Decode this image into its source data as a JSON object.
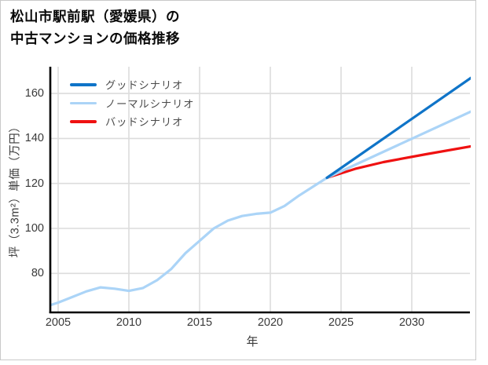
{
  "card": {
    "background": "#ffffff",
    "border_color": "#c9c9c9"
  },
  "title": {
    "line1": "松山市駅前駅（愛媛県）の",
    "line2": "中古マンションの価格推移"
  },
  "legend": {
    "position": "top-left-inside",
    "items": [
      {
        "label": "グッドシナリオ",
        "color": "#0f74c8"
      },
      {
        "label": "ノーマルシナリオ",
        "color": "#abd4f7"
      },
      {
        "label": "バッドシナリオ",
        "color": "#ef1111"
      }
    ]
  },
  "axes": {
    "x_title": "年",
    "y_title": "坪（3.3m²）単価（万円）",
    "grid_color": "#dcdcdc",
    "spine_color": "#000000",
    "tick_color": "#3a3a3a"
  },
  "chart_data": {
    "type": "line",
    "title": "松山市駅前駅（愛媛県）の中古マンションの価格推移",
    "xlabel": "年",
    "ylabel": "坪（3.3m²）単価（万円）",
    "x_ticks": [
      2005,
      2010,
      2015,
      2020,
      2025,
      2030
    ],
    "y_ticks": [
      80,
      100,
      120,
      140,
      160
    ],
    "xlim": [
      2004.4,
      2034.3
    ],
    "ylim": [
      62,
      172
    ],
    "grid": true,
    "legend_position": "top-left",
    "series": [
      {
        "name": "グッドシナリオ",
        "color": "#0f74c8",
        "width": 3.2,
        "points": [
          [
            2024,
            122.5
          ],
          [
            2034.2,
            167
          ]
        ]
      },
      {
        "name": "ノーマルシナリオ",
        "color": "#abd4f7",
        "width": 3.2,
        "points": [
          [
            2004,
            65
          ],
          [
            2005,
            67
          ],
          [
            2006,
            69.5
          ],
          [
            2007,
            72
          ],
          [
            2008,
            73.8
          ],
          [
            2009,
            73.2
          ],
          [
            2010,
            72.2
          ],
          [
            2011,
            73.5
          ],
          [
            2012,
            77
          ],
          [
            2013,
            82
          ],
          [
            2014,
            89
          ],
          [
            2015,
            94.5
          ],
          [
            2016,
            100
          ],
          [
            2017,
            103.5
          ],
          [
            2018,
            105.5
          ],
          [
            2019,
            106.5
          ],
          [
            2020,
            107
          ],
          [
            2021,
            110
          ],
          [
            2022,
            114.5
          ],
          [
            2023,
            118.5
          ],
          [
            2024,
            122.5
          ],
          [
            2034.2,
            152
          ]
        ]
      },
      {
        "name": "バッドシナリオ",
        "color": "#ef1111",
        "width": 3.2,
        "points": [
          [
            2024,
            122.5
          ],
          [
            2026,
            126.5
          ],
          [
            2028,
            129.5
          ],
          [
            2031,
            133
          ],
          [
            2034.2,
            136.5
          ]
        ]
      }
    ]
  }
}
